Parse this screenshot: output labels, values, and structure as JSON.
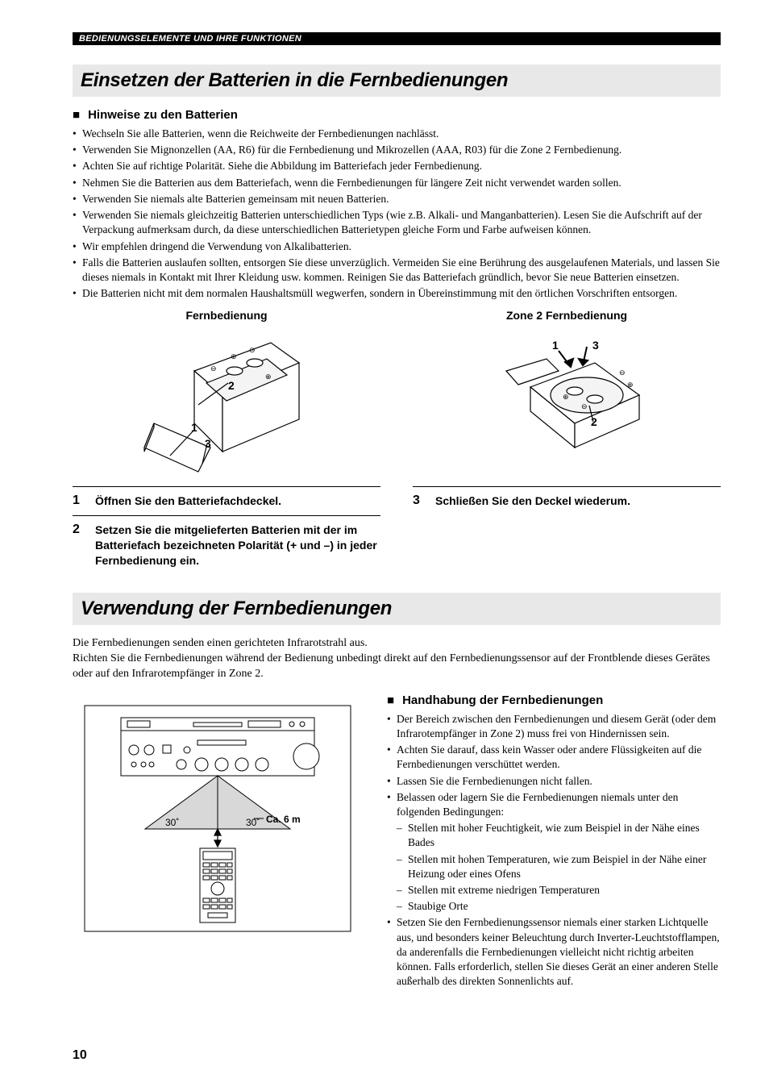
{
  "header": "BEDIENUNGSELEMENTE UND IHRE FUNKTIONEN",
  "section1": {
    "title": "Einsetzen der Batterien in die Fernbedienungen",
    "subheading": "Hinweise zu den Batterien",
    "bullets": [
      "Wechseln Sie alle Batterien, wenn die Reichweite der Fernbedienungen nachlässt.",
      "Verwenden Sie Mignonzellen (AA, R6) für die Fernbedienung und Mikrozellen (AAA, R03) für die Zone 2 Fernbedienung.",
      "Achten Sie auf richtige Polarität. Siehe die Abbildung im Batteriefach jeder Fernbedienung.",
      "Nehmen Sie die Batterien aus dem Batteriefach, wenn die Fernbedienungen für längere Zeit nicht verwendet warden sollen.",
      "Verwenden Sie niemals alte Batterien gemeinsam mit neuen Batterien.",
      "Verwenden Sie niemals gleichzeitig Batterien unterschiedlichen Typs (wie z.B. Alkali- und Manganbatterien). Lesen Sie die Aufschrift auf der Verpackung aufmerksam durch, da diese unterschiedlichen Batterietypen gleiche Form und Farbe aufweisen können.",
      "Wir empfehlen dringend die Verwendung von Alkalibatterien.",
      "Falls die Batterien auslaufen sollten, entsorgen Sie diese unverzüglich. Vermeiden Sie eine Berührung des ausgelaufenen Materials, und lassen Sie dieses niemals in Kontakt mit Ihrer Kleidung usw. kommen. Reinigen Sie das Batteriefach gründlich, bevor Sie neue Batterien einsetzen.",
      "Die Batterien nicht mit dem normalen Haushaltsmüll wegwerfen, sondern in Übereinstimmung mit den örtlichen Vorschriften entsorgen."
    ],
    "diagram1_label": "Fernbedienung",
    "diagram2_label": "Zone 2 Fernbedienung",
    "steps_left": [
      {
        "num": "1",
        "text": "Öffnen Sie den Batteriefachdeckel."
      },
      {
        "num": "2",
        "text": "Setzen Sie die mitgelieferten Batterien mit der im Batteriefach bezeichneten Polarität (+ und –) in jeder Fernbedienung ein."
      }
    ],
    "steps_right": [
      {
        "num": "3",
        "text": "Schließen Sie den Deckel wiederum."
      }
    ]
  },
  "section2": {
    "title": "Verwendung der Fernbedienungen",
    "intro": "Die Fernbedienungen senden einen gerichteten Infrarotstrahl aus.\nRichten Sie die Fernbedienungen während der Bedienung unbedingt direkt auf den Fernbedienungssensor auf der Frontblende dieses Gerätes oder auf den Infrarotempfänger in Zone 2.",
    "angle": "30˚",
    "distance": "Ca. 6 m",
    "subheading": "Handhabung der Fernbedienungen",
    "bullets": [
      "Der Bereich zwischen den Fernbedienungen und diesem Gerät (oder dem Infrarotempfänger in Zone 2) muss frei von Hindernissen sein.",
      "Achten Sie darauf, dass kein Wasser oder andere Flüssigkeiten auf die Fernbedienungen verschüttet werden.",
      "Lassen Sie die Fernbedienungen nicht fallen.",
      "Belassen oder lagern Sie die Fernbedienungen niemals unter den folgenden Bedingungen:"
    ],
    "sub_bullets": [
      "Stellen mit hoher Feuchtigkeit, wie zum Beispiel in der Nähe eines Bades",
      "Stellen mit hohen Temperaturen, wie zum Beispiel in der Nähe einer Heizung oder eines Ofens",
      "Stellen mit extreme niedrigen Temperaturen",
      "Staubige Orte"
    ],
    "bullets2": [
      "Setzen Sie den Fernbedienungssensor niemals einer starken Lichtquelle aus, und besonders keiner Beleuchtung durch Inverter-Leuchtstofflampen, da anderenfalls die Fernbedienungen vielleicht nicht richtig arbeiten können. Falls erforderlich, stellen Sie dieses Gerät an einer anderen Stelle außerhalb des direkten Sonnenlichts auf."
    ]
  },
  "page_number": "10"
}
